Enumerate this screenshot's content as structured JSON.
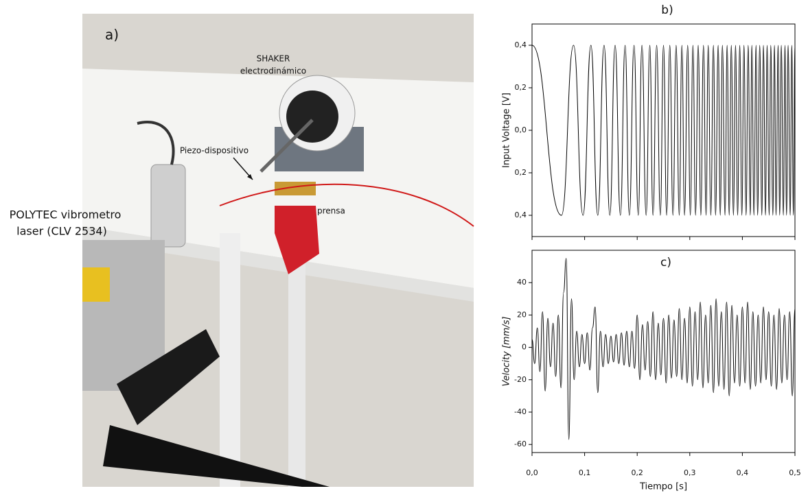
{
  "photo": {
    "label": "a)",
    "shaker": [
      "SHAKER",
      "electrodinámico"
    ],
    "piezo": "Piezo-dispositivo",
    "vise": "prensa",
    "vibrometer": [
      "POLYTEC vibrometro",
      "laser (CLV 2534)"
    ]
  },
  "chart_data": [
    {
      "type": "line",
      "label": "b)",
      "ylabel": "Input Voltage [V]",
      "x": [
        0,
        0.056,
        0.079,
        0.097,
        0.112,
        0.125,
        0.137,
        0.148,
        0.158,
        0.168,
        0.177,
        0.185,
        0.194,
        0.202,
        0.209,
        0.217,
        0.224,
        0.23,
        0.237,
        0.244,
        0.25,
        0.256,
        0.262,
        0.268,
        0.274,
        0.28,
        0.285,
        0.29,
        0.296,
        0.301,
        0.306,
        0.311,
        0.316,
        0.321,
        0.326,
        0.331,
        0.335,
        0.34,
        0.345,
        0.349,
        0.354,
        0.358,
        0.362,
        0.367,
        0.371,
        0.375,
        0.379,
        0.383,
        0.387,
        0.391,
        0.395,
        0.399,
        0.403,
        0.407,
        0.411,
        0.415,
        0.418,
        0.422,
        0.426,
        0.429,
        0.433,
        0.437,
        0.44,
        0.444,
        0.447,
        0.451,
        0.454,
        0.458,
        0.461,
        0.464,
        0.468,
        0.471,
        0.474,
        0.478,
        0.481,
        0.484,
        0.487,
        0.491,
        0.494,
        0.497,
        0.5
      ],
      "series": [
        {
          "color": "#000000",
          "values": [
            0.4,
            -0.4,
            0.4,
            -0.4,
            0.4,
            -0.4,
            0.4,
            -0.4,
            0.4,
            -0.4,
            0.4,
            -0.4,
            0.4,
            -0.4,
            0.4,
            -0.4,
            0.4,
            -0.4,
            0.4,
            -0.4,
            0.4,
            -0.4,
            0.4,
            -0.4,
            0.4,
            -0.4,
            0.4,
            -0.4,
            0.4,
            -0.4,
            0.4,
            -0.4,
            0.4,
            -0.4,
            0.4,
            -0.4,
            0.4,
            -0.4,
            0.4,
            -0.4,
            0.4,
            -0.4,
            0.4,
            -0.4,
            0.4,
            -0.4,
            0.4,
            -0.4,
            0.4,
            -0.4,
            0.4,
            -0.4,
            0.4,
            -0.4,
            0.4,
            -0.4,
            0.4,
            -0.4,
            0.4,
            -0.4,
            0.4,
            -0.4,
            0.4,
            -0.4,
            0.4,
            -0.4,
            0.4,
            -0.4,
            0.4,
            -0.4,
            0.4,
            -0.4,
            0.4,
            -0.4,
            0.4,
            -0.4,
            0.4,
            -0.4,
            0.4,
            -0.4,
            0.4
          ]
        }
      ],
      "xlim": [
        0,
        0.5
      ],
      "xticks": [
        0,
        0.1,
        0.2,
        0.3,
        0.4,
        0.5
      ],
      "ylim": [
        -0.5,
        0.5
      ],
      "yticks": [
        {
          "value": -0.4,
          "label": "0,4"
        },
        {
          "value": -0.2,
          "label": "0,2"
        },
        {
          "value": 0,
          "label": "0,0"
        },
        {
          "value": 0.2,
          "label": "0,2"
        },
        {
          "value": 0.4,
          "label": "0,4"
        }
      ]
    },
    {
      "type": "line",
      "label": "c)",
      "ylabel": "Velocity [mm/s]",
      "xlabel": "Tiempo [s]",
      "x": [
        0,
        0.005,
        0.01,
        0.015,
        0.02,
        0.025,
        0.03,
        0.035,
        0.04,
        0.045,
        0.05,
        0.055,
        0.06,
        0.065,
        0.07,
        0.075,
        0.08,
        0.085,
        0.09,
        0.095,
        0.1,
        0.105,
        0.11,
        0.115,
        0.12,
        0.125,
        0.13,
        0.135,
        0.14,
        0.145,
        0.15,
        0.155,
        0.16,
        0.165,
        0.17,
        0.175,
        0.18,
        0.185,
        0.19,
        0.195,
        0.2,
        0.205,
        0.21,
        0.215,
        0.22,
        0.225,
        0.23,
        0.235,
        0.24,
        0.245,
        0.25,
        0.255,
        0.26,
        0.265,
        0.27,
        0.275,
        0.28,
        0.285,
        0.29,
        0.295,
        0.3,
        0.305,
        0.31,
        0.315,
        0.32,
        0.325,
        0.33,
        0.335,
        0.34,
        0.345,
        0.35,
        0.355,
        0.36,
        0.365,
        0.37,
        0.375,
        0.38,
        0.385,
        0.39,
        0.395,
        0.4,
        0.405,
        0.41,
        0.415,
        0.42,
        0.425,
        0.43,
        0.435,
        0.44,
        0.445,
        0.45,
        0.455,
        0.46,
        0.465,
        0.47,
        0.475,
        0.48,
        0.485,
        0.49,
        0.495,
        0.5
      ],
      "series": [
        {
          "color": "#000000",
          "values": [
            5,
            -10,
            12,
            -15,
            22,
            -27,
            18,
            -12,
            15,
            -18,
            20,
            -25,
            34,
            55,
            -57,
            30,
            -20,
            10,
            -12,
            8,
            -10,
            9,
            -14,
            12,
            25,
            -28,
            10,
            -12,
            8,
            -10,
            7,
            -9,
            8,
            -10,
            9,
            -11,
            10,
            -12,
            10,
            -13,
            20,
            -20,
            14,
            -14,
            16,
            -18,
            22,
            -20,
            15,
            -17,
            18,
            -22,
            20,
            -19,
            17,
            -18,
            24,
            -20,
            18,
            -22,
            25,
            -24,
            22,
            -20,
            28,
            -25,
            20,
            -22,
            26,
            -28,
            30,
            -24,
            22,
            -26,
            28,
            -30,
            26,
            -22,
            20,
            -24,
            25,
            -22,
            28,
            -26,
            22,
            -24,
            20,
            -22,
            25,
            -20,
            22,
            -24,
            20,
            -26,
            24,
            -22,
            20,
            -20,
            22,
            -30,
            24
          ]
        }
      ],
      "xlim": [
        0,
        0.5
      ],
      "xticks": [
        {
          "value": 0,
          "label": "0,0"
        },
        {
          "value": 0.1,
          "label": "0,1"
        },
        {
          "value": 0.2,
          "label": "0,2"
        },
        {
          "value": 0.3,
          "label": "0,3"
        },
        {
          "value": 0.4,
          "label": "0,4"
        },
        {
          "value": 0.5,
          "label": "0,5"
        }
      ],
      "ylim": [
        -65,
        60
      ],
      "yticks": [
        -60,
        -40,
        -20,
        0,
        20,
        40
      ]
    }
  ]
}
